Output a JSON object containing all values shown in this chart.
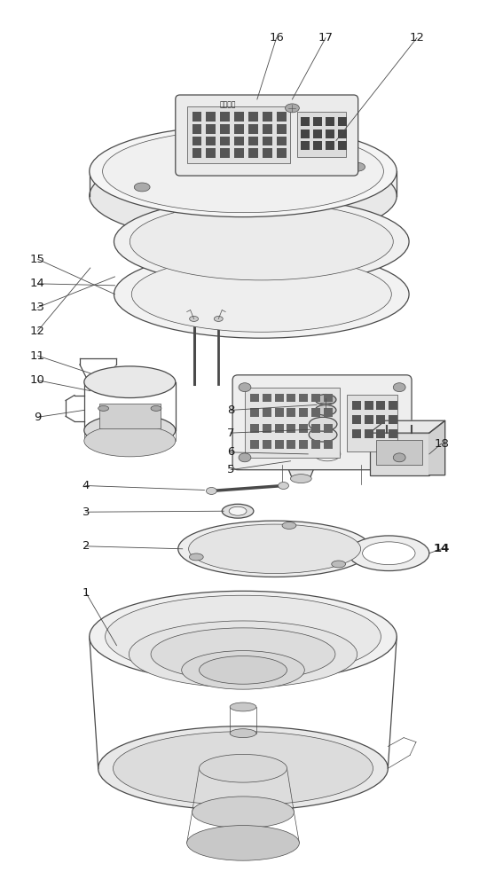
{
  "bg_color": "#ffffff",
  "lc": "#4a4a4a",
  "lc2": "#666666",
  "fc_light": "#f0f0f0",
  "fc_mid": "#e0e0e0",
  "fc_dark": "#cccccc",
  "fc_white": "#ffffff",
  "label_color": "#1a1a1a",
  "figsize": [
    5.49,
    10.0
  ],
  "dpi": 100
}
